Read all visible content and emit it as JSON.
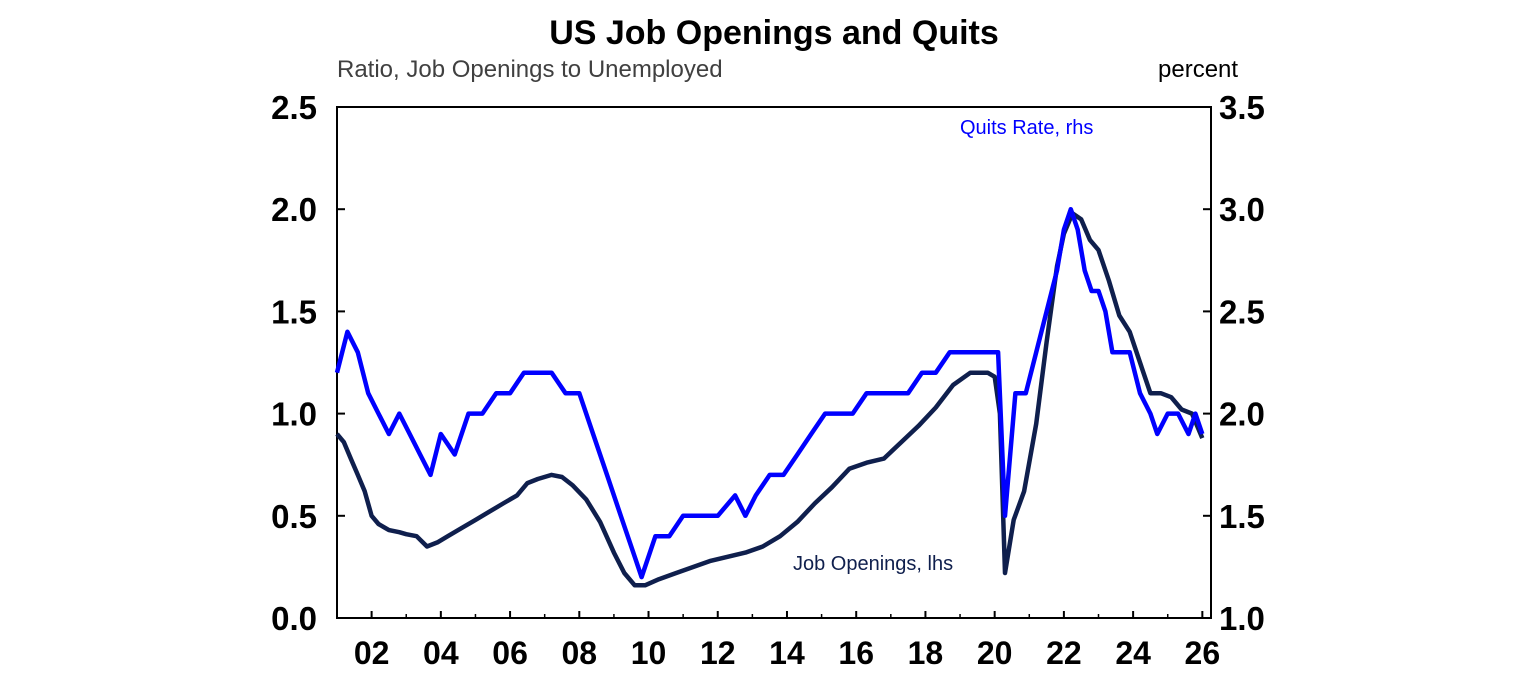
{
  "chart_data": {
    "type": "line",
    "title": "US Job Openings and Quits",
    "subtitle_left": "Ratio, Job Openings to Unemployed",
    "subtitle_right": "percent",
    "y_left": {
      "ylim": [
        0,
        2.5
      ],
      "ticks": [
        "0.0",
        "0.5",
        "1.0",
        "1.5",
        "2.0",
        "2.5"
      ]
    },
    "y_right": {
      "ylim": [
        1.0,
        3.5
      ],
      "ticks": [
        "1.0",
        "1.5",
        "2.0",
        "2.5",
        "3.0",
        "3.5"
      ]
    },
    "x": {
      "xlim": [
        2001.0,
        2026.25
      ],
      "ticks": [
        "02",
        "04",
        "06",
        "08",
        "10",
        "12",
        "14",
        "16",
        "18",
        "20",
        "22",
        "24",
        "26"
      ]
    },
    "series": [
      {
        "name": "Job Openings, lhs",
        "axis": "left",
        "color": "#0f1f4d",
        "points": [
          [
            2001.0,
            0.9
          ],
          [
            2001.2,
            0.86
          ],
          [
            2001.4,
            0.78
          ],
          [
            2001.6,
            0.7
          ],
          [
            2001.8,
            0.62
          ],
          [
            2002.0,
            0.5
          ],
          [
            2002.2,
            0.46
          ],
          [
            2002.5,
            0.43
          ],
          [
            2002.8,
            0.42
          ],
          [
            2003.0,
            0.41
          ],
          [
            2003.3,
            0.4
          ],
          [
            2003.6,
            0.35
          ],
          [
            2003.9,
            0.37
          ],
          [
            2004.2,
            0.4
          ],
          [
            2004.6,
            0.44
          ],
          [
            2005.0,
            0.48
          ],
          [
            2005.4,
            0.52
          ],
          [
            2005.8,
            0.56
          ],
          [
            2006.2,
            0.6
          ],
          [
            2006.5,
            0.66
          ],
          [
            2006.8,
            0.68
          ],
          [
            2007.2,
            0.7
          ],
          [
            2007.5,
            0.69
          ],
          [
            2007.8,
            0.65
          ],
          [
            2008.2,
            0.58
          ],
          [
            2008.6,
            0.47
          ],
          [
            2009.0,
            0.32
          ],
          [
            2009.3,
            0.22
          ],
          [
            2009.6,
            0.16
          ],
          [
            2009.9,
            0.16
          ],
          [
            2010.3,
            0.19
          ],
          [
            2010.8,
            0.22
          ],
          [
            2011.3,
            0.25
          ],
          [
            2011.8,
            0.28
          ],
          [
            2012.3,
            0.3
          ],
          [
            2012.8,
            0.32
          ],
          [
            2013.3,
            0.35
          ],
          [
            2013.8,
            0.4
          ],
          [
            2014.3,
            0.47
          ],
          [
            2014.8,
            0.56
          ],
          [
            2015.3,
            0.64
          ],
          [
            2015.8,
            0.73
          ],
          [
            2016.3,
            0.76
          ],
          [
            2016.8,
            0.78
          ],
          [
            2017.3,
            0.86
          ],
          [
            2017.8,
            0.94
          ],
          [
            2018.3,
            1.03
          ],
          [
            2018.8,
            1.14
          ],
          [
            2019.3,
            1.2
          ],
          [
            2019.8,
            1.2
          ],
          [
            2020.0,
            1.18
          ],
          [
            2020.15,
            1.0
          ],
          [
            2020.3,
            0.22
          ],
          [
            2020.55,
            0.48
          ],
          [
            2020.85,
            0.62
          ],
          [
            2021.2,
            0.95
          ],
          [
            2021.5,
            1.35
          ],
          [
            2021.8,
            1.72
          ],
          [
            2022.0,
            1.88
          ],
          [
            2022.25,
            1.98
          ],
          [
            2022.5,
            1.95
          ],
          [
            2022.75,
            1.85
          ],
          [
            2023.0,
            1.8
          ],
          [
            2023.3,
            1.65
          ],
          [
            2023.6,
            1.48
          ],
          [
            2023.9,
            1.4
          ],
          [
            2024.2,
            1.25
          ],
          [
            2024.5,
            1.1
          ],
          [
            2024.8,
            1.1
          ],
          [
            2025.1,
            1.08
          ],
          [
            2025.4,
            1.02
          ],
          [
            2025.7,
            1.0
          ],
          [
            2026.0,
            0.88
          ]
        ]
      },
      {
        "name": "Quits Rate, rhs",
        "axis": "right",
        "color": "#0000ff",
        "points": [
          [
            2001.0,
            2.2
          ],
          [
            2001.3,
            2.4
          ],
          [
            2001.6,
            2.3
          ],
          [
            2001.9,
            2.1
          ],
          [
            2002.2,
            2.0
          ],
          [
            2002.5,
            1.9
          ],
          [
            2002.8,
            2.0
          ],
          [
            2003.1,
            1.9
          ],
          [
            2003.4,
            1.8
          ],
          [
            2003.7,
            1.7
          ],
          [
            2004.0,
            1.9
          ],
          [
            2004.4,
            1.8
          ],
          [
            2004.8,
            2.0
          ],
          [
            2005.2,
            2.0
          ],
          [
            2005.6,
            2.1
          ],
          [
            2006.0,
            2.1
          ],
          [
            2006.4,
            2.2
          ],
          [
            2006.8,
            2.2
          ],
          [
            2007.2,
            2.2
          ],
          [
            2007.6,
            2.1
          ],
          [
            2008.0,
            2.1
          ],
          [
            2008.4,
            1.9
          ],
          [
            2008.8,
            1.7
          ],
          [
            2009.2,
            1.5
          ],
          [
            2009.6,
            1.3
          ],
          [
            2009.8,
            1.2
          ],
          [
            2010.2,
            1.4
          ],
          [
            2010.6,
            1.4
          ],
          [
            2011.0,
            1.5
          ],
          [
            2011.5,
            1.5
          ],
          [
            2012.0,
            1.5
          ],
          [
            2012.5,
            1.6
          ],
          [
            2012.8,
            1.5
          ],
          [
            2013.1,
            1.6
          ],
          [
            2013.5,
            1.7
          ],
          [
            2013.9,
            1.7
          ],
          [
            2014.3,
            1.8
          ],
          [
            2014.7,
            1.9
          ],
          [
            2015.1,
            2.0
          ],
          [
            2015.5,
            2.0
          ],
          [
            2015.9,
            2.0
          ],
          [
            2016.3,
            2.1
          ],
          [
            2016.7,
            2.1
          ],
          [
            2017.1,
            2.1
          ],
          [
            2017.5,
            2.1
          ],
          [
            2017.9,
            2.2
          ],
          [
            2018.3,
            2.2
          ],
          [
            2018.7,
            2.3
          ],
          [
            2019.1,
            2.3
          ],
          [
            2019.5,
            2.3
          ],
          [
            2019.9,
            2.3
          ],
          [
            2020.1,
            2.3
          ],
          [
            2020.3,
            1.5
          ],
          [
            2020.6,
            2.1
          ],
          [
            2020.9,
            2.1
          ],
          [
            2021.2,
            2.3
          ],
          [
            2021.5,
            2.5
          ],
          [
            2021.8,
            2.7
          ],
          [
            2022.0,
            2.9
          ],
          [
            2022.2,
            3.0
          ],
          [
            2022.4,
            2.9
          ],
          [
            2022.6,
            2.7
          ],
          [
            2022.8,
            2.6
          ],
          [
            2023.0,
            2.6
          ],
          [
            2023.2,
            2.5
          ],
          [
            2023.4,
            2.3
          ],
          [
            2023.6,
            2.3
          ],
          [
            2023.9,
            2.3
          ],
          [
            2024.2,
            2.1
          ],
          [
            2024.5,
            2.0
          ],
          [
            2024.7,
            1.9
          ],
          [
            2025.0,
            2.0
          ],
          [
            2025.3,
            2.0
          ],
          [
            2025.6,
            1.9
          ],
          [
            2025.8,
            2.0
          ],
          [
            2026.0,
            1.9
          ]
        ]
      }
    ],
    "annotations": [
      {
        "text": "Quits Rate, rhs",
        "color": "#0000ff"
      },
      {
        "text": "Job Openings, lhs",
        "color": "#0f1f4d"
      }
    ],
    "grid": false,
    "legend": "inline annotations"
  }
}
